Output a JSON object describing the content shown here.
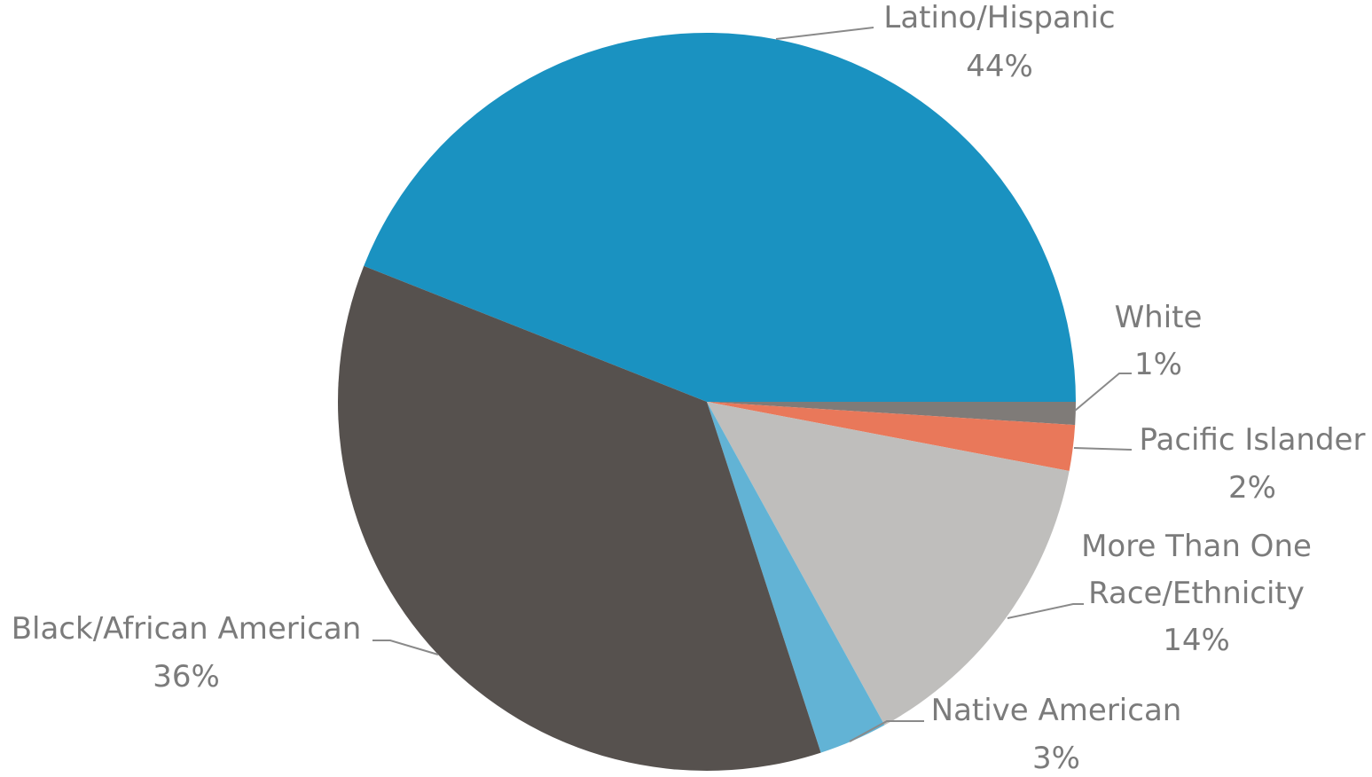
{
  "chart_data": {
    "type": "pie",
    "title": "",
    "slices": [
      {
        "name": "Latino/Hispanic",
        "value": 44,
        "label": "44%",
        "color": "#1a92c1"
      },
      {
        "name": "White",
        "value": 1,
        "label": "1%",
        "color": "#7f7b78"
      },
      {
        "name": "Pacific Islander",
        "value": 2,
        "label": "2%",
        "color": "#e9785a"
      },
      {
        "name": "More Than One Race/Ethnicity",
        "value": 14,
        "label": "14%",
        "color": "#bfbebc"
      },
      {
        "name": "Native American",
        "value": 3,
        "label": "3%",
        "color": "#62b3d5"
      },
      {
        "name": "Black/African American",
        "value": 36,
        "label": "36%",
        "color": "#56514e"
      }
    ],
    "legend": "none",
    "data_labels": "outside-with-leader-lines"
  },
  "labels": {
    "latino": {
      "line1": "Latino/Hispanic",
      "pct": "44%"
    },
    "white": {
      "line1": "White",
      "pct": "1%"
    },
    "pacific": {
      "line1": "Pacific Islander",
      "pct": "2%"
    },
    "multi": {
      "line1": "More Than One",
      "line2": "Race/Ethnicity",
      "pct": "14%"
    },
    "native": {
      "line1": "Native American",
      "pct": "3%"
    },
    "black": {
      "line1": "Black/African American",
      "pct": "36%"
    }
  }
}
